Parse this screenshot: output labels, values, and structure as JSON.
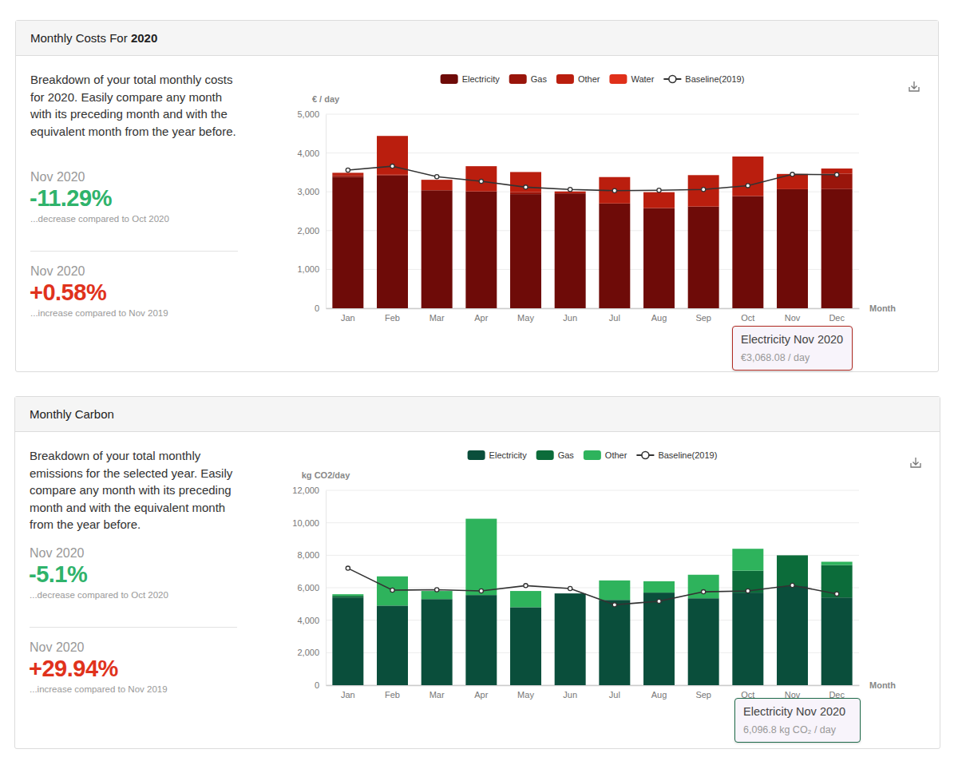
{
  "cards": [
    {
      "header": {
        "text": "Monthly Costs For ",
        "emphasis": "2020"
      },
      "description": "Breakdown of your total monthly costs for 2020. Easily compare any month with its preceding month and with the equivalent month from the year before.",
      "stats": [
        {
          "period": "Nov 2020",
          "value": "-11.29%",
          "note": "...decrease compared to Oct 2020"
        },
        {
          "period": "Nov 2020",
          "value": "+0.58%",
          "note": "...increase compared to Nov 2019"
        }
      ]
    },
    {
      "header": {
        "text": "Monthly Carbon"
      },
      "description": "Breakdown of your total monthly emissions for the selected year. Easily compare any month with its preceding month and with the equivalent month from the year before.",
      "stats": [
        {
          "period": "Nov 2020",
          "value": "-5.1%",
          "note": "...decrease compared to Oct 2020"
        },
        {
          "period": "Nov 2020",
          "value": "+29.94%",
          "note": "...increase compared to Nov 2019"
        }
      ]
    }
  ],
  "chart_data": [
    {
      "type": "bar",
      "stacked": true,
      "legend": "top",
      "grid": true,
      "y_label": "€ / day",
      "x_label": "Month",
      "categories": [
        "Jan",
        "Feb",
        "Mar",
        "Apr",
        "May",
        "Jun",
        "Jul",
        "Aug",
        "Sep",
        "Oct",
        "Nov",
        "Dec"
      ],
      "ylim": [
        0,
        5000
      ],
      "yticks": [
        0,
        {
          "value": 1000,
          "label": "1,000"
        },
        {
          "value": 2000,
          "label": "2,000"
        },
        {
          "value": 3000,
          "label": "3,000"
        },
        {
          "value": 4000,
          "label": "4,000"
        },
        {
          "value": 5000,
          "label": "5,000"
        }
      ],
      "series": [
        {
          "name": "Electricity",
          "type": "bar",
          "color": "#6e0b08",
          "values": [
            3380,
            3420,
            3040,
            3010,
            2940,
            2960,
            2700,
            2580,
            2620,
            2890,
            3068.08,
            3070
          ]
        },
        {
          "name": "Gas",
          "type": "bar",
          "color": "#99150b",
          "values": [
            40,
            20,
            0,
            0,
            50,
            0,
            0,
            0,
            0,
            0,
            0,
            400
          ]
        },
        {
          "name": "Other",
          "type": "bar",
          "color": "#ba1e0e",
          "values": [
            70,
            1000,
            270,
            650,
            520,
            50,
            680,
            410,
            810,
            1020,
            392,
            130
          ]
        },
        {
          "name": "Water",
          "type": "bar",
          "color": "#e0301a",
          "values": [
            0,
            0,
            0,
            0,
            0,
            0,
            0,
            0,
            0,
            0,
            0,
            0
          ]
        },
        {
          "name": "Baseline(2019)",
          "type": "line",
          "marker": "circle",
          "color": "#333333",
          "values": [
            3560,
            3660,
            3390,
            3270,
            3120,
            3060,
            3030,
            3040,
            3060,
            3160,
            3450,
            3440
          ]
        }
      ],
      "annotations": [
        {
          "title": "Electricity Nov 2020",
          "text": "€3,068.08 / day",
          "color": "#b02a22"
        }
      ]
    },
    {
      "type": "bar",
      "stacked": true,
      "legend": "top",
      "grid": true,
      "y_label": "kg CO2/day",
      "x_label": "Month",
      "categories": [
        "Jan",
        "Feb",
        "Mar",
        "Apr",
        "May",
        "Jun",
        "Jul",
        "Aug",
        "Sep",
        "Oct",
        "Nov",
        "Dec"
      ],
      "ylim": [
        0,
        12000
      ],
      "yticks": [
        0,
        {
          "value": 2000,
          "label": "2,000"
        },
        {
          "value": 4000,
          "label": "4,000"
        },
        {
          "value": 6000,
          "label": "6,000"
        },
        {
          "value": 8000,
          "label": "8,000"
        },
        {
          "value": 10000,
          "label": "10,000"
        },
        {
          "value": 12000,
          "label": "12,000"
        }
      ],
      "series": [
        {
          "name": "Electricity",
          "type": "bar",
          "color": "#0a4e3b",
          "values": [
            5400,
            4900,
            5300,
            5550,
            4800,
            5650,
            5250,
            5700,
            5350,
            5700,
            6096.8,
            5400
          ]
        },
        {
          "name": "Gas",
          "type": "bar",
          "color": "#0c6c3a",
          "values": [
            100,
            0,
            0,
            0,
            0,
            0,
            0,
            0,
            0,
            1350,
            1900,
            2000
          ]
        },
        {
          "name": "Other",
          "type": "bar",
          "color": "#2eb35c",
          "values": [
            100,
            1800,
            500,
            4700,
            1000,
            0,
            1200,
            700,
            1450,
            1350,
            0,
            200
          ]
        },
        {
          "name": "Baseline(2019)",
          "type": "line",
          "marker": "circle",
          "color": "#333333",
          "values": [
            7200,
            5850,
            5880,
            5800,
            6130,
            5950,
            4950,
            5170,
            5750,
            5800,
            6150,
            5620
          ]
        }
      ],
      "annotations": [
        {
          "title": "Electricity Nov 2020",
          "text": "6,096.8 kg CO₂ / day",
          "color": "#1f6b4a"
        }
      ]
    }
  ]
}
